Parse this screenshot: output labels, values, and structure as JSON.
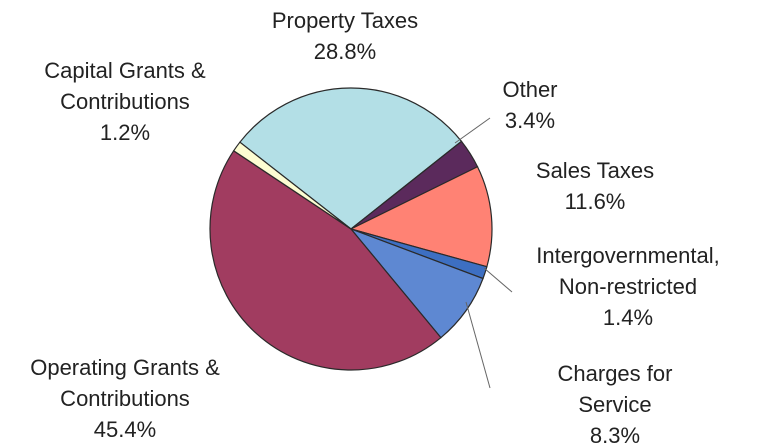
{
  "chart_data": {
    "type": "pie",
    "categories": [
      "Property Taxes",
      "Other",
      "Sales Taxes",
      "Intergovernmental,\nNon-restricted",
      "Charges for Service",
      "Operating Grants &\nContributions",
      "Capital Grants &\nContributions"
    ],
    "values": [
      28.8,
      3.4,
      11.6,
      1.4,
      8.3,
      45.4,
      1.2
    ],
    "value_labels": [
      "28.8%",
      "3.4%",
      "11.6%",
      "1.4%",
      "8.3%",
      "45.4%",
      "1.2%"
    ],
    "colors": [
      "#b3dfe6",
      "#5b2a5c",
      "#ff8274",
      "#3d6fc2",
      "#5e88d2",
      "#a13c60",
      "#fdfdd2"
    ]
  }
}
